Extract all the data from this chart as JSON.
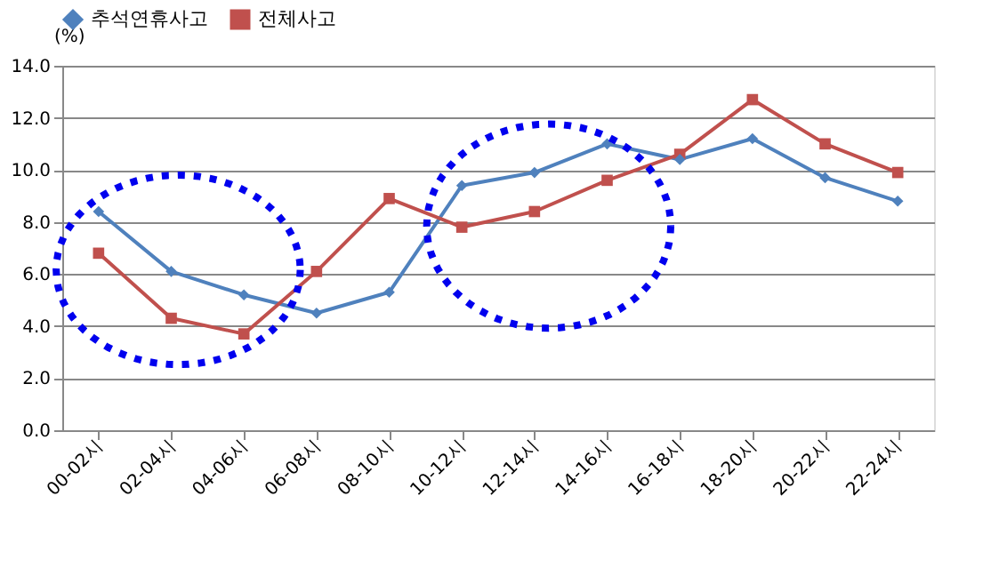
{
  "chart_data": {
    "type": "line",
    "ylabel": "(%)",
    "categories": [
      "00-02시",
      "02-04시",
      "04-06시",
      "06-08시",
      "08-10시",
      "10-12시",
      "12-14시",
      "14-16시",
      "16-18시",
      "18-20시",
      "20-22시",
      "22-24시"
    ],
    "series": [
      {
        "name": "추석연휴사고",
        "color": "#4f81bd",
        "marker": "diamond",
        "values": [
          8.4,
          6.1,
          5.2,
          4.5,
          5.3,
          9.4,
          9.9,
          11.0,
          10.4,
          11.2,
          9.7,
          8.8
        ]
      },
      {
        "name": "전체사고",
        "color": "#c0504d",
        "marker": "square",
        "values": [
          6.8,
          4.3,
          3.7,
          6.1,
          8.9,
          7.8,
          8.4,
          9.6,
          10.6,
          12.7,
          11.0,
          9.9
        ]
      }
    ],
    "ylim": [
      0,
      14
    ],
    "yticks": [
      {
        "value": 0,
        "label": "0.0"
      },
      {
        "value": 2,
        "label": "2.0"
      },
      {
        "value": 4,
        "label": "4.0"
      },
      {
        "value": 6,
        "label": "6.0"
      },
      {
        "value": 8,
        "label": "8.0"
      },
      {
        "value": 10,
        "label": "10.0"
      },
      {
        "value": 12,
        "label": "12.0"
      },
      {
        "value": 14,
        "label": "14.0"
      }
    ],
    "grid": "y",
    "legend": "top",
    "line_style": "solid"
  }
}
